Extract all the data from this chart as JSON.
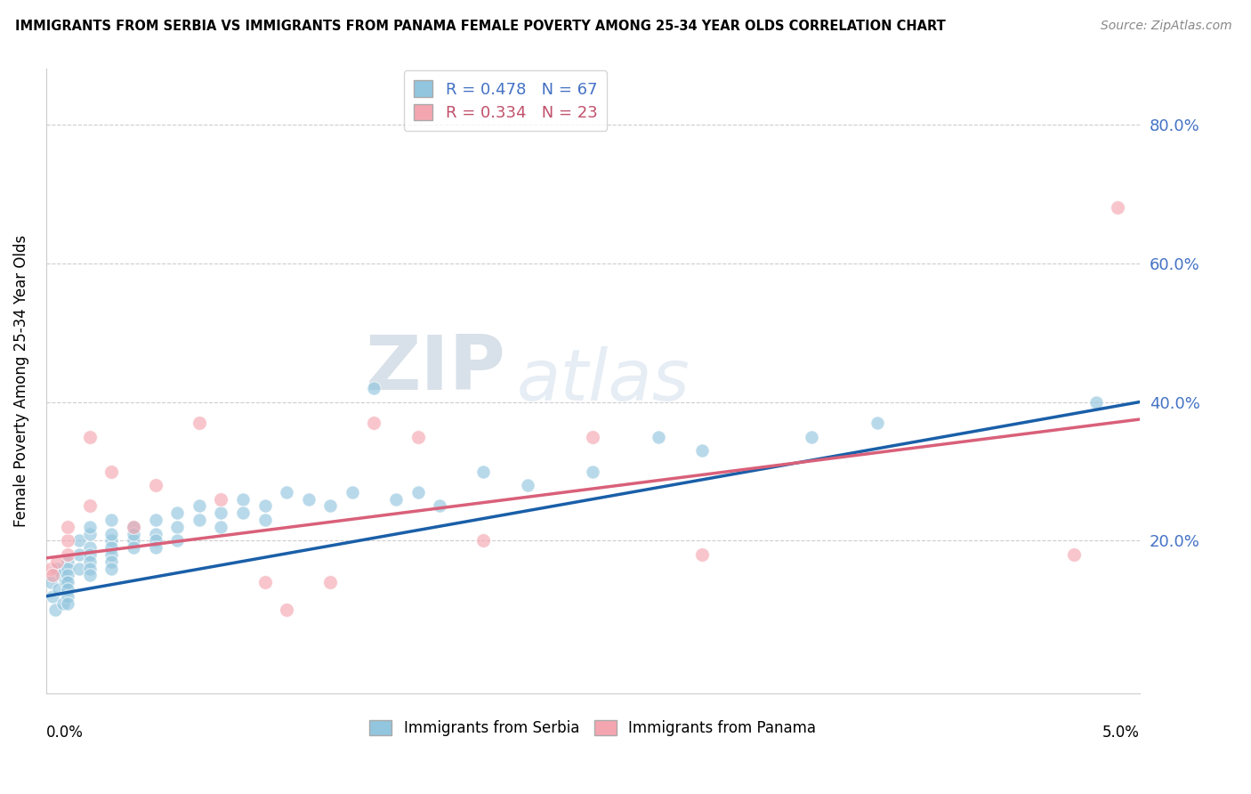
{
  "title": "IMMIGRANTS FROM SERBIA VS IMMIGRANTS FROM PANAMA FEMALE POVERTY AMONG 25-34 YEAR OLDS CORRELATION CHART",
  "source": "Source: ZipAtlas.com",
  "ylabel": "Female Poverty Among 25-34 Year Olds",
  "y_tick_labels": [
    "20.0%",
    "40.0%",
    "60.0%",
    "80.0%"
  ],
  "y_tick_values": [
    0.2,
    0.4,
    0.6,
    0.8
  ],
  "xlim": [
    0.0,
    0.05
  ],
  "ylim": [
    -0.02,
    0.88
  ],
  "serbia_R": 0.478,
  "serbia_N": 67,
  "panama_R": 0.334,
  "panama_N": 23,
  "serbia_color": "#92c5de",
  "panama_color": "#f4a6b0",
  "serbia_line_color": "#1a5fa8",
  "panama_line_color": "#d9607a",
  "legend_serbia_color": "#92c5de",
  "legend_panama_color": "#f4a6b0",
  "serbia_label": "Immigrants from Serbia",
  "panama_label": "Immigrants from Panama",
  "watermark_zip": "ZIP",
  "watermark_atlas": "atlas",
  "serbia_scatter_x": [
    0.0002,
    0.0003,
    0.0004,
    0.0005,
    0.0006,
    0.0007,
    0.0008,
    0.0009,
    0.001,
    0.001,
    0.001,
    0.001,
    0.001,
    0.001,
    0.001,
    0.0015,
    0.0015,
    0.0015,
    0.002,
    0.002,
    0.002,
    0.002,
    0.002,
    0.002,
    0.002,
    0.003,
    0.003,
    0.003,
    0.003,
    0.003,
    0.003,
    0.003,
    0.004,
    0.004,
    0.004,
    0.004,
    0.005,
    0.005,
    0.005,
    0.005,
    0.006,
    0.006,
    0.006,
    0.007,
    0.007,
    0.008,
    0.008,
    0.009,
    0.009,
    0.01,
    0.01,
    0.011,
    0.012,
    0.013,
    0.014,
    0.015,
    0.016,
    0.017,
    0.018,
    0.02,
    0.022,
    0.025,
    0.028,
    0.03,
    0.035,
    0.038,
    0.048
  ],
  "serbia_scatter_y": [
    0.14,
    0.12,
    0.1,
    0.16,
    0.13,
    0.15,
    0.11,
    0.14,
    0.17,
    0.16,
    0.15,
    0.14,
    0.13,
    0.12,
    0.11,
    0.2,
    0.18,
    0.16,
    0.19,
    0.21,
    0.18,
    0.17,
    0.16,
    0.15,
    0.22,
    0.2,
    0.19,
    0.21,
    0.18,
    0.17,
    0.23,
    0.16,
    0.22,
    0.2,
    0.19,
    0.21,
    0.23,
    0.21,
    0.2,
    0.19,
    0.24,
    0.22,
    0.2,
    0.25,
    0.23,
    0.24,
    0.22,
    0.26,
    0.24,
    0.25,
    0.23,
    0.27,
    0.26,
    0.25,
    0.27,
    0.42,
    0.26,
    0.27,
    0.25,
    0.3,
    0.28,
    0.3,
    0.35,
    0.33,
    0.35,
    0.37,
    0.4
  ],
  "panama_scatter_x": [
    0.0002,
    0.0003,
    0.0005,
    0.001,
    0.001,
    0.001,
    0.002,
    0.002,
    0.003,
    0.004,
    0.005,
    0.007,
    0.008,
    0.01,
    0.011,
    0.013,
    0.015,
    0.017,
    0.02,
    0.025,
    0.03,
    0.047,
    0.049
  ],
  "panama_scatter_y": [
    0.16,
    0.15,
    0.17,
    0.18,
    0.2,
    0.22,
    0.25,
    0.35,
    0.3,
    0.22,
    0.28,
    0.37,
    0.26,
    0.14,
    0.1,
    0.14,
    0.37,
    0.35,
    0.2,
    0.35,
    0.18,
    0.18,
    0.68
  ],
  "serbia_line_x0": 0.0,
  "serbia_line_y0": 0.12,
  "serbia_line_x1": 0.05,
  "serbia_line_y1": 0.4,
  "panama_line_x0": 0.0,
  "panama_line_y0": 0.175,
  "panama_line_x1": 0.05,
  "panama_line_y1": 0.375
}
